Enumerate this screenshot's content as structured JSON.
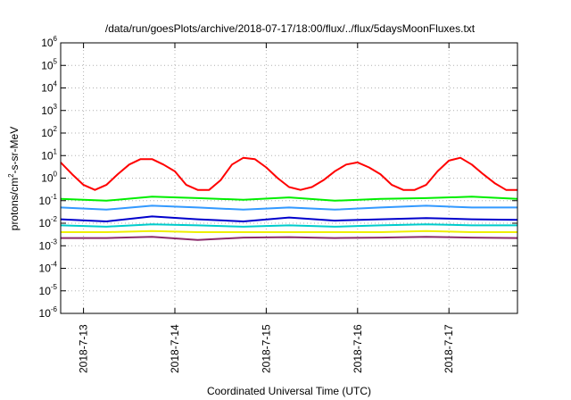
{
  "chart_data": {
    "type": "line",
    "title": "/data/run/goesPlots/archive/2018-07-17/18:00/flux/../flux/5daysMoonFluxes.txt",
    "xlabel": "Coordinated Universal Time (UTC)",
    "ylabel": {
      "prefix": "protons/cm",
      "sup": "2",
      "suffix": "-s-sr-MeV"
    },
    "yscale": "log",
    "ylim": [
      1e-06,
      1000000.0
    ],
    "y_ticks": [
      {
        "value": 1e-06,
        "base": "10",
        "exp": "-6"
      },
      {
        "value": 1e-05,
        "base": "10",
        "exp": "-5"
      },
      {
        "value": 0.0001,
        "base": "10",
        "exp": "-4"
      },
      {
        "value": 0.001,
        "base": "10",
        "exp": "-3"
      },
      {
        "value": 0.01,
        "base": "10",
        "exp": "-2"
      },
      {
        "value": 0.1,
        "base": "10",
        "exp": "-1"
      },
      {
        "value": 1,
        "base": "10",
        "exp": "0"
      },
      {
        "value": 10,
        "base": "10",
        "exp": "1"
      },
      {
        "value": 100,
        "base": "10",
        "exp": "2"
      },
      {
        "value": 1000,
        "base": "10",
        "exp": "3"
      },
      {
        "value": 10000,
        "base": "10",
        "exp": "4"
      },
      {
        "value": 100000,
        "base": "10",
        "exp": "5"
      },
      {
        "value": 1000000,
        "base": "10",
        "exp": "6"
      }
    ],
    "xlim": [
      "2018-07-12T18:00",
      "2018-07-17T18:00"
    ],
    "x_ticks": [
      {
        "value": "2018-07-13T00:00",
        "label": "2018-7-13"
      },
      {
        "value": "2018-07-14T00:00",
        "label": "2018-7-14"
      },
      {
        "value": "2018-07-15T00:00",
        "label": "2018-7-15"
      },
      {
        "value": "2018-07-16T00:00",
        "label": "2018-7-16"
      },
      {
        "value": "2018-07-17T00:00",
        "label": "2018-7-17"
      }
    ],
    "grid": true,
    "legend": false,
    "series": [
      {
        "color": "#ff0000",
        "x": [
          "2018-07-12T18:00",
          "2018-07-12T21:00",
          "2018-07-13T00:00",
          "2018-07-13T03:00",
          "2018-07-13T06:00",
          "2018-07-13T09:00",
          "2018-07-13T12:00",
          "2018-07-13T15:00",
          "2018-07-13T18:00",
          "2018-07-13T21:00",
          "2018-07-14T00:00",
          "2018-07-14T03:00",
          "2018-07-14T06:00",
          "2018-07-14T09:00",
          "2018-07-14T12:00",
          "2018-07-14T15:00",
          "2018-07-14T18:00",
          "2018-07-14T21:00",
          "2018-07-15T00:00",
          "2018-07-15T03:00",
          "2018-07-15T06:00",
          "2018-07-15T09:00",
          "2018-07-15T12:00",
          "2018-07-15T15:00",
          "2018-07-15T18:00",
          "2018-07-15T21:00",
          "2018-07-16T00:00",
          "2018-07-16T03:00",
          "2018-07-16T06:00",
          "2018-07-16T09:00",
          "2018-07-16T12:00",
          "2018-07-16T15:00",
          "2018-07-16T18:00",
          "2018-07-16T21:00",
          "2018-07-17T00:00",
          "2018-07-17T03:00",
          "2018-07-17T06:00",
          "2018-07-17T09:00",
          "2018-07-17T12:00",
          "2018-07-17T15:00",
          "2018-07-17T18:00"
        ],
        "y": [
          5,
          1.5,
          0.5,
          0.3,
          0.5,
          1.5,
          4,
          7,
          7,
          4,
          2,
          0.5,
          0.3,
          0.3,
          0.8,
          4,
          8,
          7,
          3,
          1,
          0.4,
          0.3,
          0.4,
          0.8,
          2,
          4,
          5,
          3,
          1.5,
          0.5,
          0.3,
          0.3,
          0.5,
          2,
          6,
          8,
          4,
          1.5,
          0.6,
          0.3,
          0.3
        ]
      },
      {
        "color": "#00ee00",
        "x": [
          "2018-07-12T18:00",
          "2018-07-13T06:00",
          "2018-07-13T18:00",
          "2018-07-14T06:00",
          "2018-07-14T18:00",
          "2018-07-15T06:00",
          "2018-07-15T18:00",
          "2018-07-16T06:00",
          "2018-07-16T18:00",
          "2018-07-17T06:00",
          "2018-07-17T18:00"
        ],
        "y": [
          0.12,
          0.1,
          0.15,
          0.13,
          0.11,
          0.14,
          0.1,
          0.12,
          0.13,
          0.15,
          0.12
        ]
      },
      {
        "color": "#3399ff",
        "x": [
          "2018-07-12T18:00",
          "2018-07-13T06:00",
          "2018-07-13T18:00",
          "2018-07-14T06:00",
          "2018-07-14T18:00",
          "2018-07-15T06:00",
          "2018-07-15T18:00",
          "2018-07-16T06:00",
          "2018-07-16T18:00",
          "2018-07-17T06:00",
          "2018-07-17T18:00"
        ],
        "y": [
          0.05,
          0.04,
          0.06,
          0.05,
          0.04,
          0.05,
          0.04,
          0.05,
          0.06,
          0.05,
          0.05
        ]
      },
      {
        "color": "#0000cc",
        "x": [
          "2018-07-12T18:00",
          "2018-07-13T06:00",
          "2018-07-13T18:00",
          "2018-07-14T06:00",
          "2018-07-14T18:00",
          "2018-07-15T06:00",
          "2018-07-15T18:00",
          "2018-07-16T06:00",
          "2018-07-16T18:00",
          "2018-07-17T06:00",
          "2018-07-17T18:00"
        ],
        "y": [
          0.015,
          0.012,
          0.02,
          0.015,
          0.012,
          0.018,
          0.013,
          0.015,
          0.017,
          0.015,
          0.014
        ]
      },
      {
        "color": "#00cccc",
        "x": [
          "2018-07-12T18:00",
          "2018-07-13T06:00",
          "2018-07-13T18:00",
          "2018-07-14T06:00",
          "2018-07-14T18:00",
          "2018-07-15T06:00",
          "2018-07-15T18:00",
          "2018-07-16T06:00",
          "2018-07-16T18:00",
          "2018-07-17T06:00",
          "2018-07-17T18:00"
        ],
        "y": [
          0.008,
          0.007,
          0.009,
          0.008,
          0.007,
          0.008,
          0.007,
          0.008,
          0.009,
          0.008,
          0.008
        ]
      },
      {
        "color": "#eeee00",
        "x": [
          "2018-07-12T18:00",
          "2018-07-13T06:00",
          "2018-07-13T18:00",
          "2018-07-14T06:00",
          "2018-07-14T18:00",
          "2018-07-15T06:00",
          "2018-07-15T18:00",
          "2018-07-16T06:00",
          "2018-07-16T18:00",
          "2018-07-17T06:00",
          "2018-07-17T18:00"
        ],
        "y": [
          0.004,
          0.004,
          0.0045,
          0.004,
          0.004,
          0.004,
          0.004,
          0.004,
          0.0045,
          0.004,
          0.004
        ]
      },
      {
        "color": "#8b2a6b",
        "x": [
          "2018-07-12T18:00",
          "2018-07-13T06:00",
          "2018-07-13T18:00",
          "2018-07-14T06:00",
          "2018-07-14T18:00",
          "2018-07-15T06:00",
          "2018-07-15T18:00",
          "2018-07-16T06:00",
          "2018-07-16T18:00",
          "2018-07-17T06:00",
          "2018-07-17T18:00"
        ],
        "y": [
          0.0022,
          0.0022,
          0.0025,
          0.0018,
          0.0023,
          0.0024,
          0.0022,
          0.0023,
          0.0025,
          0.0023,
          0.0022
        ]
      }
    ]
  }
}
